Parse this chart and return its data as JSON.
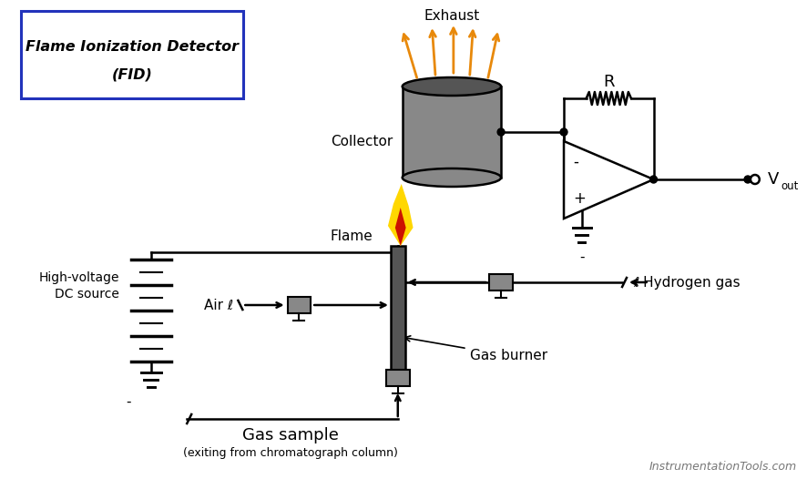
{
  "title_line1": "Flame Ionization Detector",
  "title_line2": "(FID)",
  "title_box_color": "#2233bb",
  "bg_color": "#ffffff",
  "exhaust_label": "Exhaust",
  "collector_label": "Collector",
  "flame_label": "Flame",
  "air_label": "Air ℓ",
  "hydrogen_label": "ℓ Hydrogen gas",
  "gas_burner_label": "Gas burner",
  "hv_label1": "High-voltage",
  "hv_label2": "DC source",
  "gas_sample_label": "Gas sample",
  "gas_sample_sub": "(exiting from chromatograph column)",
  "R_label": "R",
  "vout_label": "V",
  "vout_sub": "out",
  "minus_label": "-",
  "plus_label": "+",
  "website": "InstrumentationTools.com",
  "exhaust_arrow_color": "#E8890B",
  "line_color": "#000000",
  "collector_body_color": "#888888",
  "collector_top_color": "#555555",
  "flame_yellow": "#FFD700",
  "flame_red": "#CC1100",
  "valve_face_color": "#888888",
  "tube_color": "#555555",
  "battery_lw_long": 2.5,
  "battery_lw_short": 1.5,
  "lw": 1.8
}
